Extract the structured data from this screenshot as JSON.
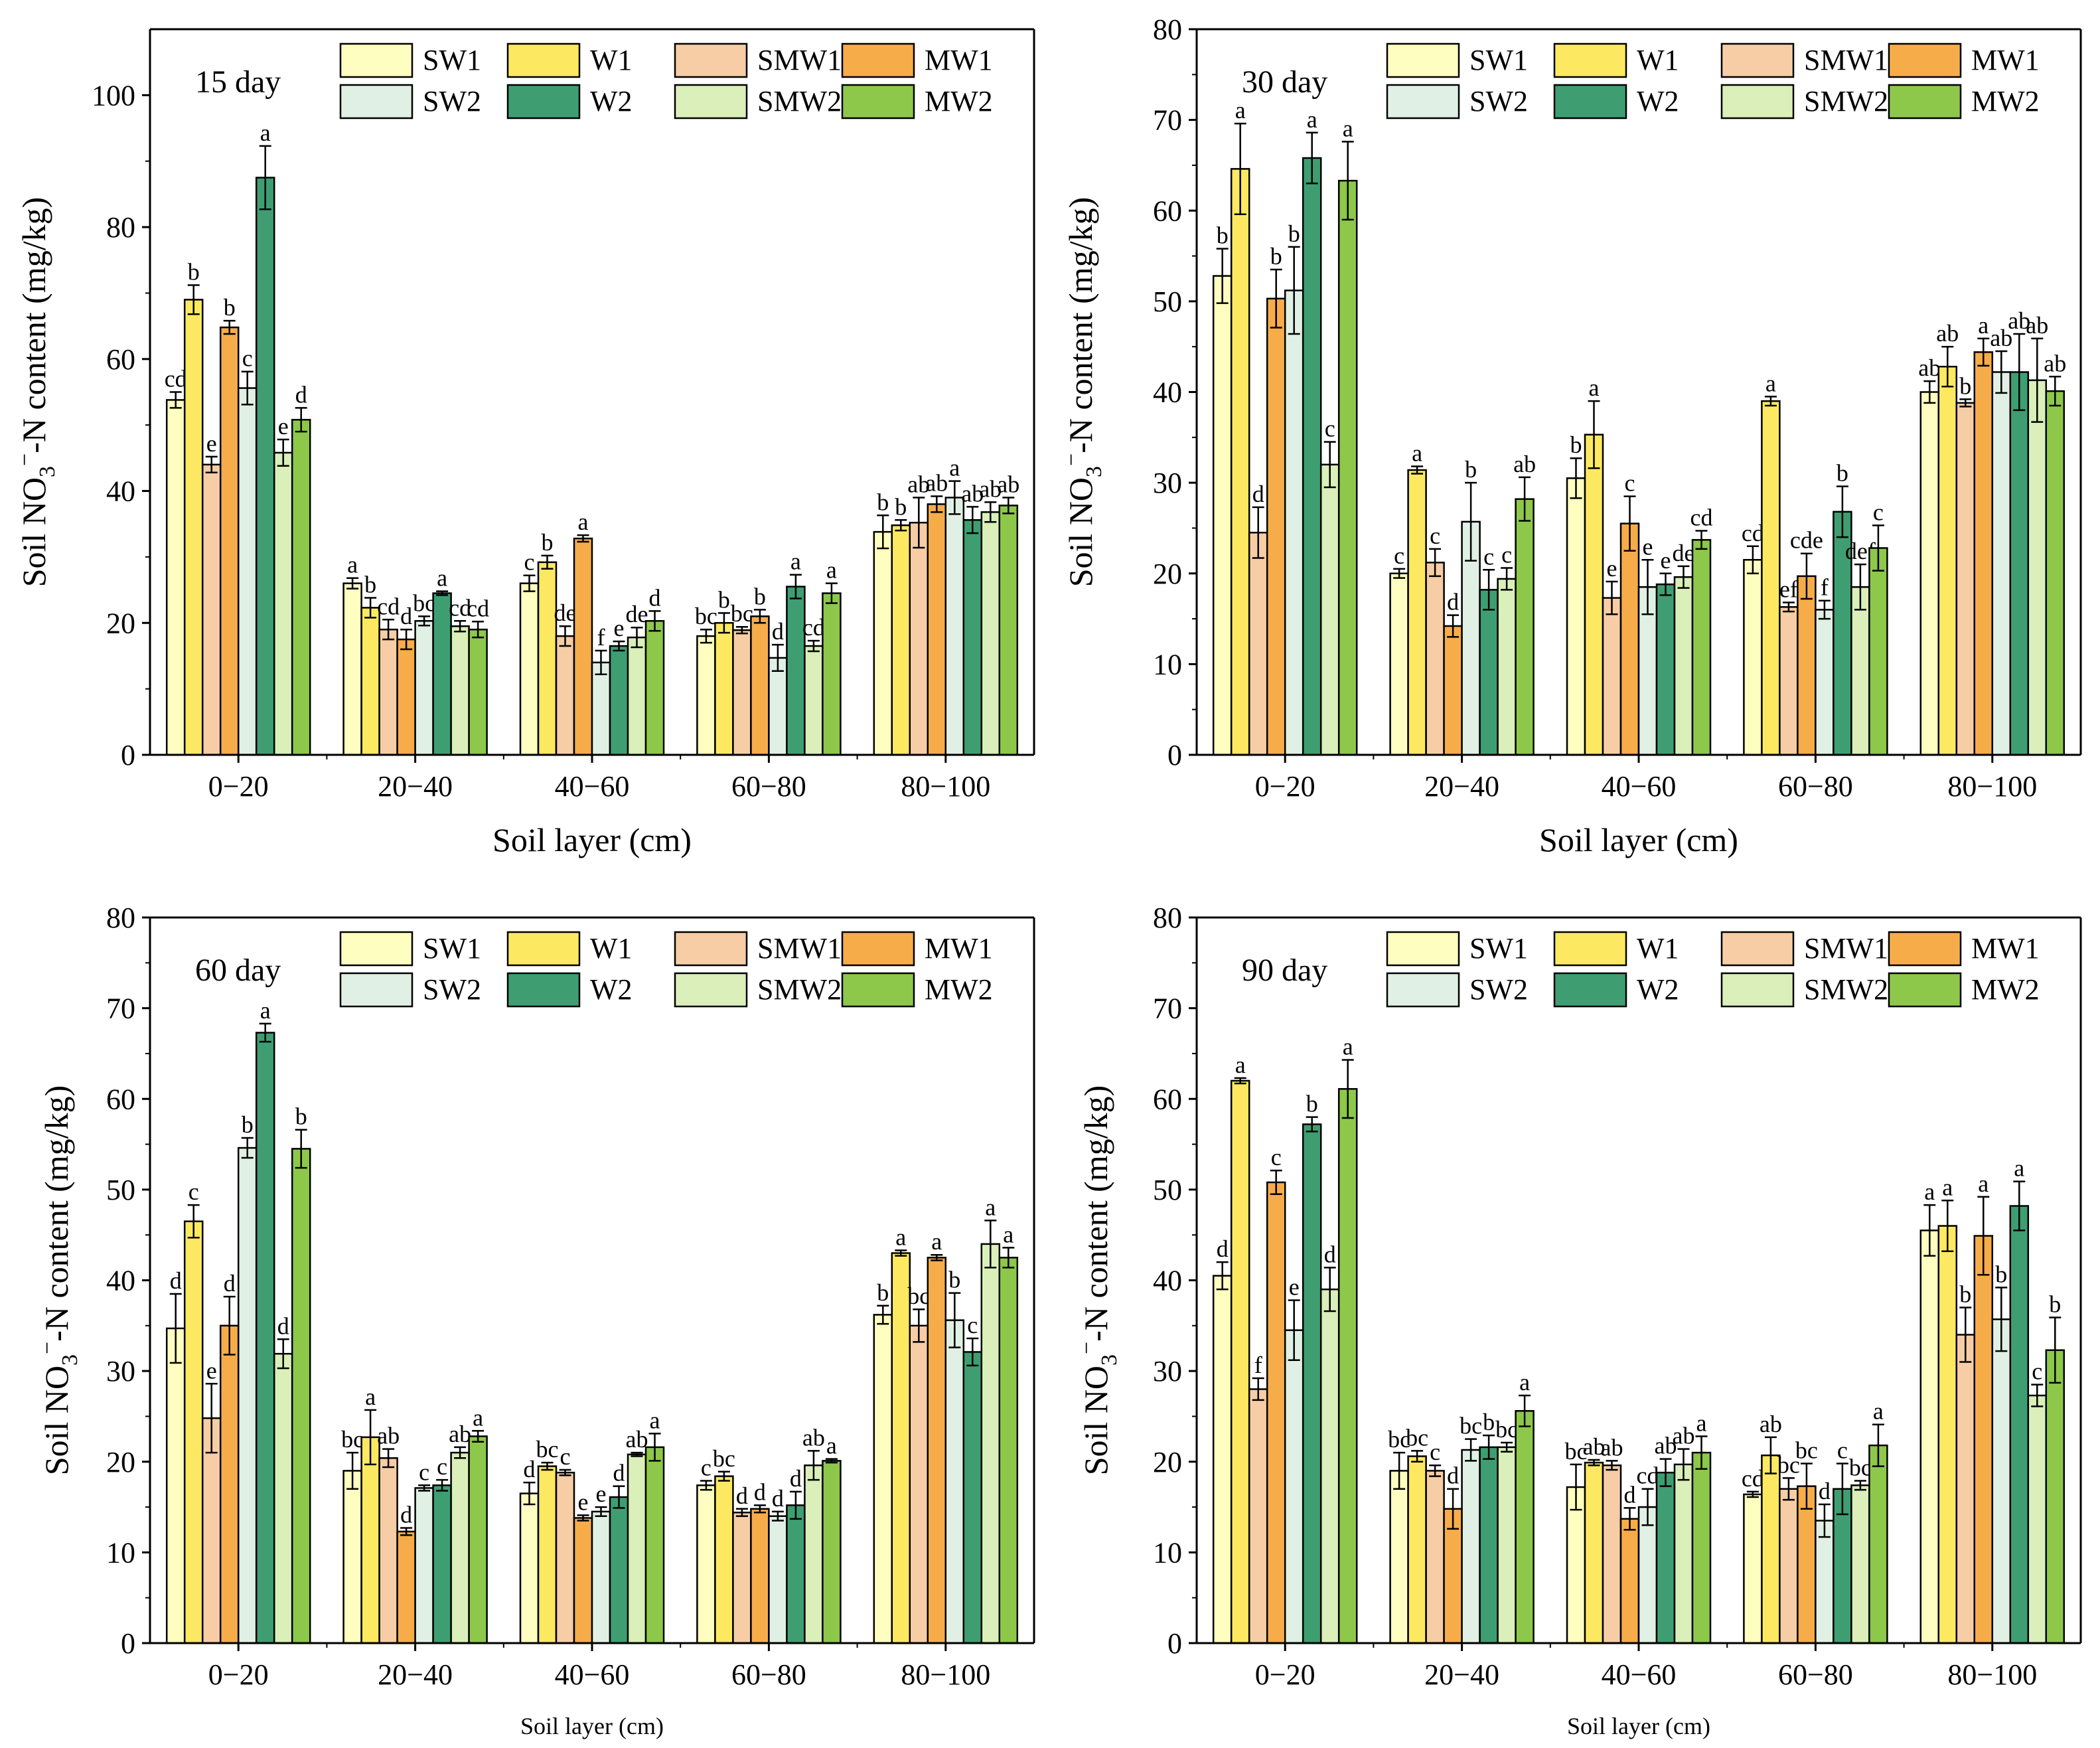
{
  "figure": {
    "ylabel_prefix": "Soil NO",
    "ylabel_sub": "3",
    "ylabel_sup": "−",
    "ylabel_suffix": "-N content (mg/kg)",
    "xlabel": "Soil layer (cm)"
  },
  "legend": [
    {
      "name": "SW1",
      "color": "#FEFEC0"
    },
    {
      "name": "W1",
      "color": "#FCE961"
    },
    {
      "name": "SMW1",
      "color": "#F6CDA5"
    },
    {
      "name": "MW1",
      "color": "#F7AC4A"
    },
    {
      "name": "SW2",
      "color": "#E1F0E4"
    },
    {
      "name": "W2",
      "color": "#3E9E72"
    },
    {
      "name": "SMW2",
      "color": "#DAEFB9"
    },
    {
      "name": "MW2",
      "color": "#8DC84A"
    }
  ],
  "chart_data": [
    {
      "type": "bar",
      "title": "15 day",
      "xlabel": "Soil layer (cm)",
      "ylabel": "Soil NO3−-N content (mg/kg)",
      "xlabel_style": "large",
      "ylim": [
        0,
        110
      ],
      "yticks": [
        0,
        20,
        40,
        60,
        80,
        100
      ],
      "categories": [
        "0−20",
        "20−40",
        "40−60",
        "60−80",
        "80−100"
      ],
      "series": [
        {
          "name": "SW1",
          "values": [
            53.8,
            26.0,
            26.0,
            18.0,
            33.8
          ],
          "errors": [
            1.2,
            0.8,
            1.2,
            1.0,
            2.5
          ],
          "letters": [
            "cd",
            "a",
            "c",
            "bc",
            "b"
          ]
        },
        {
          "name": "W1",
          "values": [
            69.0,
            22.3,
            29.2,
            20.0,
            34.8
          ],
          "errors": [
            2.2,
            1.5,
            1.0,
            1.5,
            0.8
          ],
          "letters": [
            "b",
            "b",
            "b",
            "b",
            "b"
          ]
        },
        {
          "name": "SMW1",
          "values": [
            44.0,
            19.0,
            18.0,
            18.9,
            35.2
          ],
          "errors": [
            1.2,
            1.5,
            1.5,
            0.5,
            3.8
          ],
          "letters": [
            "e",
            "cd",
            "de",
            "bc",
            "ab"
          ]
        },
        {
          "name": "MW1",
          "values": [
            64.8,
            17.5,
            32.8,
            21.0,
            38.0
          ],
          "errors": [
            1.0,
            1.5,
            0.5,
            1.0,
            1.2
          ],
          "letters": [
            "b",
            "d",
            "a",
            "b",
            "ab"
          ]
        },
        {
          "name": "SW2",
          "values": [
            55.6,
            20.3,
            14.0,
            14.7,
            39.0
          ],
          "errors": [
            2.5,
            0.7,
            1.8,
            2.0,
            2.5
          ],
          "letters": [
            "c",
            "bc",
            "f",
            "d",
            "a"
          ]
        },
        {
          "name": "W2",
          "values": [
            87.5,
            24.5,
            16.5,
            25.5,
            35.6
          ],
          "errors": [
            4.8,
            0.3,
            0.7,
            1.8,
            2.0
          ],
          "letters": [
            "a",
            "a",
            "e",
            "a",
            "ab"
          ]
        },
        {
          "name": "SMW2",
          "values": [
            45.8,
            19.5,
            17.8,
            16.5,
            36.8
          ],
          "errors": [
            2.0,
            0.8,
            1.5,
            0.8,
            1.5
          ],
          "letters": [
            "e",
            "cd",
            "de",
            "cd",
            "ab"
          ]
        },
        {
          "name": "MW2",
          "values": [
            50.8,
            19.0,
            20.3,
            24.5,
            37.8
          ],
          "errors": [
            1.8,
            1.2,
            1.5,
            1.5,
            1.2
          ],
          "letters": [
            "d",
            "cd",
            "d",
            "a",
            "ab"
          ]
        }
      ]
    },
    {
      "type": "bar",
      "title": "30 day",
      "xlabel": "Soil layer (cm)",
      "ylabel": "Soil NO3−-N content (mg/kg)",
      "xlabel_style": "large",
      "ylim": [
        0,
        80
      ],
      "yticks": [
        0,
        10,
        20,
        30,
        40,
        50,
        60,
        70,
        80
      ],
      "categories": [
        "0−20",
        "20−40",
        "40−60",
        "60−80",
        "80−100"
      ],
      "series": [
        {
          "name": "SW1",
          "values": [
            52.8,
            20.0,
            30.5,
            21.5,
            40.0
          ],
          "errors": [
            3.0,
            0.5,
            2.2,
            1.5,
            1.2
          ],
          "letters": [
            "b",
            "c",
            "b",
            "cd",
            "ab"
          ]
        },
        {
          "name": "W1",
          "values": [
            64.6,
            31.4,
            35.3,
            39.0,
            42.8
          ],
          "errors": [
            5.0,
            0.4,
            3.7,
            0.5,
            2.2
          ],
          "letters": [
            "a",
            "a",
            "a",
            "a",
            "ab"
          ]
        },
        {
          "name": "SMW1",
          "values": [
            24.5,
            21.2,
            17.3,
            16.3,
            38.8
          ],
          "errors": [
            2.8,
            1.5,
            1.8,
            0.5,
            0.4
          ],
          "letters": [
            "d",
            "c",
            "e",
            "ef",
            "b"
          ]
        },
        {
          "name": "MW1",
          "values": [
            50.3,
            14.2,
            25.5,
            19.7,
            44.4
          ],
          "errors": [
            3.2,
            1.2,
            3.0,
            2.5,
            1.5
          ],
          "letters": [
            "b",
            "d",
            "c",
            "cde",
            "a"
          ]
        },
        {
          "name": "SW2",
          "values": [
            51.2,
            25.7,
            18.5,
            16.0,
            42.2
          ],
          "errors": [
            4.8,
            4.3,
            3.0,
            1.0,
            2.3
          ],
          "letters": [
            "b",
            "b",
            "e",
            "f",
            "ab"
          ]
        },
        {
          "name": "W2",
          "values": [
            65.8,
            18.2,
            18.8,
            26.8,
            42.2
          ],
          "errors": [
            2.8,
            2.2,
            1.2,
            2.8,
            4.2
          ],
          "letters": [
            "a",
            "c",
            "e",
            "b",
            "ab"
          ]
        },
        {
          "name": "SMW2",
          "values": [
            32.0,
            19.4,
            19.6,
            18.5,
            41.3
          ],
          "errors": [
            2.5,
            1.2,
            1.2,
            2.5,
            4.6
          ],
          "letters": [
            "c",
            "c",
            "de",
            "def",
            "ab"
          ]
        },
        {
          "name": "MW2",
          "values": [
            63.3,
            28.2,
            23.7,
            22.8,
            40.1
          ],
          "errors": [
            4.3,
            2.4,
            1.0,
            2.5,
            1.6
          ],
          "letters": [
            "a",
            "ab",
            "cd",
            "c",
            "ab"
          ]
        }
      ]
    },
    {
      "type": "bar",
      "title": "60 day",
      "xlabel": "Soil layer (cm)",
      "ylabel": "Soil NO3−-N content (mg/kg)",
      "xlabel_style": "small",
      "ylim": [
        0,
        80
      ],
      "yticks": [
        0,
        10,
        20,
        30,
        40,
        50,
        60,
        70,
        80
      ],
      "categories": [
        "0−20",
        "20−40",
        "40−60",
        "60−80",
        "80−100"
      ],
      "series": [
        {
          "name": "SW1",
          "values": [
            34.7,
            19.0,
            16.5,
            17.4,
            36.2
          ],
          "errors": [
            3.8,
            2.0,
            1.2,
            0.5,
            1.0
          ],
          "letters": [
            "d",
            "bc",
            "d",
            "c",
            "b"
          ]
        },
        {
          "name": "W1",
          "values": [
            46.5,
            22.7,
            19.5,
            18.4,
            43.0
          ],
          "errors": [
            1.8,
            3.0,
            0.4,
            0.5,
            0.3
          ],
          "letters": [
            "c",
            "a",
            "bc",
            "bc",
            "a"
          ]
        },
        {
          "name": "SMW1",
          "values": [
            24.8,
            20.4,
            18.8,
            14.4,
            35.0
          ],
          "errors": [
            3.8,
            1.0,
            0.3,
            0.4,
            1.8
          ],
          "letters": [
            "e",
            "ab",
            "c",
            "d",
            "bc"
          ]
        },
        {
          "name": "MW1",
          "values": [
            35.0,
            12.3,
            13.8,
            14.8,
            42.5
          ],
          "errors": [
            3.2,
            0.4,
            0.3,
            0.4,
            0.3
          ],
          "letters": [
            "d",
            "d",
            "e",
            "d",
            "a"
          ]
        },
        {
          "name": "SW2",
          "values": [
            54.6,
            17.1,
            14.5,
            14.0,
            35.6
          ],
          "errors": [
            1.1,
            0.3,
            0.5,
            0.5,
            3.0
          ],
          "letters": [
            "b",
            "c",
            "e",
            "d",
            "b"
          ]
        },
        {
          "name": "W2",
          "values": [
            67.3,
            17.4,
            16.1,
            15.2,
            32.1
          ],
          "errors": [
            1.0,
            0.6,
            1.2,
            1.5,
            1.5
          ],
          "letters": [
            "a",
            "c",
            "d",
            "d",
            "c"
          ]
        },
        {
          "name": "SMW2",
          "values": [
            31.9,
            21.0,
            20.8,
            19.6,
            44.0
          ],
          "errors": [
            1.6,
            0.6,
            0.2,
            1.6,
            2.6
          ],
          "letters": [
            "d",
            "ab",
            "ab",
            "ab",
            "a"
          ]
        },
        {
          "name": "MW2",
          "values": [
            54.5,
            22.8,
            21.6,
            20.1,
            42.5
          ],
          "errors": [
            2.1,
            0.6,
            1.5,
            0.2,
            1.1
          ],
          "letters": [
            "b",
            "a",
            "a",
            "a",
            "a"
          ]
        }
      ]
    },
    {
      "type": "bar",
      "title": "90 day",
      "xlabel": "Soil layer (cm)",
      "ylabel": "Soil NO3−-N content (mg/kg)",
      "xlabel_style": "small",
      "ylim": [
        0,
        80
      ],
      "yticks": [
        0,
        10,
        20,
        30,
        40,
        50,
        60,
        70,
        80
      ],
      "categories": [
        "0−20",
        "20−40",
        "40−60",
        "60−80",
        "80−100"
      ],
      "series": [
        {
          "name": "SW1",
          "values": [
            40.5,
            19.0,
            17.2,
            16.4,
            45.5
          ],
          "errors": [
            1.5,
            2.0,
            2.5,
            0.3,
            2.8
          ],
          "letters": [
            "d",
            "bc",
            "bc",
            "cd",
            "a"
          ]
        },
        {
          "name": "W1",
          "values": [
            62.0,
            20.6,
            19.9,
            20.7,
            46.0
          ],
          "errors": [
            0.3,
            0.6,
            0.3,
            2.0,
            2.8
          ],
          "letters": [
            "a",
            "bc",
            "ab",
            "ab",
            "a"
          ]
        },
        {
          "name": "SMW1",
          "values": [
            28.0,
            19.0,
            19.6,
            17.0,
            34.0
          ],
          "errors": [
            1.2,
            0.6,
            0.5,
            1.2,
            3.0
          ],
          "letters": [
            "f",
            "c",
            "ab",
            "bc",
            "b"
          ]
        },
        {
          "name": "MW1",
          "values": [
            50.8,
            14.8,
            13.7,
            17.3,
            44.9
          ],
          "errors": [
            1.3,
            2.2,
            1.2,
            2.5,
            4.3
          ],
          "letters": [
            "c",
            "d",
            "d",
            "bc",
            "a"
          ]
        },
        {
          "name": "SW2",
          "values": [
            34.5,
            21.3,
            15.0,
            13.5,
            35.7
          ],
          "errors": [
            3.3,
            1.2,
            2.0,
            1.8,
            3.5
          ],
          "letters": [
            "e",
            "bc",
            "cd",
            "d",
            "b"
          ]
        },
        {
          "name": "W2",
          "values": [
            57.2,
            21.6,
            18.8,
            17.0,
            48.2
          ],
          "errors": [
            0.8,
            1.3,
            1.5,
            2.8,
            2.7
          ],
          "letters": [
            "b",
            "b",
            "ab",
            "c",
            "a"
          ]
        },
        {
          "name": "SMW2",
          "values": [
            39.0,
            21.6,
            19.7,
            17.4,
            27.3
          ],
          "errors": [
            2.4,
            0.5,
            1.7,
            0.5,
            1.2
          ],
          "letters": [
            "d",
            "bc",
            "ab",
            "bc",
            "c"
          ]
        },
        {
          "name": "MW2",
          "values": [
            61.1,
            25.6,
            21.0,
            21.8,
            32.3
          ],
          "errors": [
            3.2,
            1.7,
            1.8,
            2.3,
            3.6
          ],
          "letters": [
            "a",
            "a",
            "a",
            "a",
            "b"
          ]
        }
      ]
    }
  ]
}
